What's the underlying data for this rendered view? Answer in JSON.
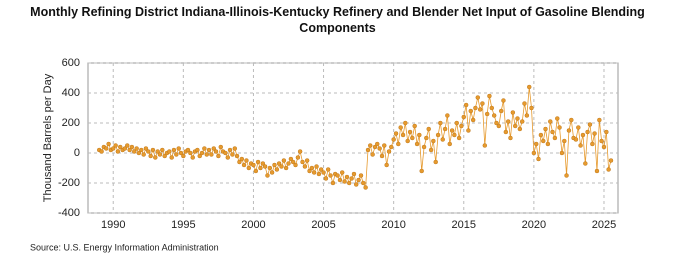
{
  "chart_data": {
    "type": "line",
    "title": "Monthly Refining District Indiana-Illinois-Kentucky Refinery and Blender Net Input of Gasoline Blending Components",
    "y_label": "Thousand Barrels per Day",
    "source": "Source: U.S. Energy Information Administration",
    "xlim": [
      1988.2,
      2026
    ],
    "xticks": [
      1990,
      1995,
      2000,
      2005,
      2010,
      2015,
      2020,
      2025
    ],
    "ylim": [
      -400,
      600
    ],
    "yticks": [
      -400,
      -200,
      0,
      200,
      400,
      600
    ],
    "grid": true,
    "series": [
      {
        "color": "#e69a2e",
        "x": [
          1989,
          1989.17,
          1989.33,
          1989.5,
          1989.67,
          1989.83,
          1990,
          1990.17,
          1990.33,
          1990.5,
          1990.67,
          1990.83,
          1991,
          1991.17,
          1991.33,
          1991.5,
          1991.67,
          1991.83,
          1992,
          1992.17,
          1992.33,
          1992.5,
          1992.67,
          1992.83,
          1993,
          1993.17,
          1993.33,
          1993.5,
          1993.67,
          1993.83,
          1994,
          1994.17,
          1994.33,
          1994.5,
          1994.67,
          1994.83,
          1995,
          1995.17,
          1995.33,
          1995.5,
          1995.67,
          1995.83,
          1996,
          1996.17,
          1996.33,
          1996.5,
          1996.67,
          1996.83,
          1997,
          1997.17,
          1997.33,
          1997.5,
          1997.67,
          1997.83,
          1998,
          1998.17,
          1998.33,
          1998.5,
          1998.67,
          1998.83,
          1999,
          1999.17,
          1999.33,
          1999.5,
          1999.67,
          1999.83,
          2000,
          2000.17,
          2000.33,
          2000.5,
          2000.67,
          2000.83,
          2001,
          2001.17,
          2001.33,
          2001.5,
          2001.67,
          2001.83,
          2002,
          2002.17,
          2002.33,
          2002.5,
          2002.67,
          2002.83,
          2003,
          2003.17,
          2003.33,
          2003.5,
          2003.67,
          2003.83,
          2004,
          2004.17,
          2004.33,
          2004.5,
          2004.67,
          2004.83,
          2005,
          2005.17,
          2005.33,
          2005.5,
          2005.67,
          2005.83,
          2006,
          2006.17,
          2006.33,
          2006.5,
          2006.67,
          2006.83,
          2007,
          2007.17,
          2007.33,
          2007.5,
          2007.67,
          2007.83,
          2008,
          2008.17,
          2008.33,
          2008.5,
          2008.67,
          2008.83,
          2009,
          2009.17,
          2009.33,
          2009.5,
          2009.67,
          2009.83,
          2010,
          2010.17,
          2010.33,
          2010.5,
          2010.67,
          2010.83,
          2011,
          2011.17,
          2011.33,
          2011.5,
          2011.67,
          2011.83,
          2012,
          2012.17,
          2012.33,
          2012.5,
          2012.67,
          2012.83,
          2013,
          2013.17,
          2013.33,
          2013.5,
          2013.67,
          2013.83,
          2014,
          2014.17,
          2014.33,
          2014.5,
          2014.67,
          2014.83,
          2015,
          2015.17,
          2015.33,
          2015.5,
          2015.67,
          2015.83,
          2016,
          2016.17,
          2016.33,
          2016.5,
          2016.67,
          2016.83,
          2017,
          2017.17,
          2017.33,
          2017.5,
          2017.67,
          2017.83,
          2018,
          2018.17,
          2018.33,
          2018.5,
          2018.67,
          2018.83,
          2019,
          2019.17,
          2019.33,
          2019.5,
          2019.67,
          2019.83,
          2020,
          2020.17,
          2020.33,
          2020.5,
          2020.67,
          2020.83,
          2021,
          2021.17,
          2021.33,
          2021.5,
          2021.67,
          2021.83,
          2022,
          2022.17,
          2022.33,
          2022.5,
          2022.67,
          2022.83,
          2023,
          2023.17,
          2023.33,
          2023.5,
          2023.67,
          2023.83,
          2024,
          2024.17,
          2024.33,
          2024.5,
          2024.67,
          2024.83,
          2025,
          2025.17,
          2025.33,
          2025.5
        ],
        "values": [
          20,
          10,
          40,
          30,
          60,
          20,
          30,
          50,
          10,
          40,
          20,
          30,
          50,
          20,
          40,
          10,
          30,
          0,
          20,
          -10,
          30,
          10,
          -20,
          20,
          -30,
          10,
          -10,
          20,
          -20,
          0,
          10,
          -30,
          20,
          -10,
          30,
          0,
          -20,
          10,
          20,
          0,
          -30,
          10,
          20,
          -20,
          0,
          30,
          -10,
          20,
          -10,
          30,
          10,
          -20,
          40,
          10,
          0,
          -30,
          20,
          -10,
          30,
          -20,
          -60,
          -40,
          -80,
          -50,
          -100,
          -70,
          -80,
          -120,
          -60,
          -100,
          -70,
          -90,
          -150,
          -100,
          -130,
          -80,
          -110,
          -70,
          -90,
          -50,
          -100,
          -70,
          -40,
          -60,
          -80,
          -30,
          10,
          -60,
          -90,
          -50,
          -120,
          -100,
          -130,
          -90,
          -140,
          -110,
          -130,
          -170,
          -110,
          -150,
          -200,
          -140,
          -150,
          -180,
          -130,
          -190,
          -160,
          -200,
          -170,
          -140,
          -210,
          -180,
          -150,
          -200,
          -230,
          20,
          50,
          -10,
          40,
          60,
          30,
          -20,
          50,
          -80,
          10,
          40,
          90,
          130,
          60,
          170,
          120,
          200,
          80,
          140,
          100,
          180,
          60,
          120,
          -120,
          40,
          100,
          160,
          20,
          80,
          -60,
          120,
          200,
          90,
          160,
          250,
          60,
          150,
          120,
          200,
          100,
          180,
          240,
          320,
          150,
          280,
          220,
          300,
          370,
          290,
          330,
          50,
          260,
          380,
          300,
          250,
          200,
          180,
          280,
          350,
          140,
          210,
          100,
          270,
          180,
          230,
          160,
          210,
          330,
          250,
          440,
          300,
          0,
          60,
          -40,
          120,
          80,
          160,
          60,
          210,
          140,
          100,
          230,
          170,
          0,
          80,
          -150,
          150,
          220,
          100,
          90,
          170,
          50,
          120,
          -70,
          140,
          190,
          60,
          130,
          -120,
          220,
          80,
          40,
          140,
          -110,
          -50
        ]
      }
    ]
  }
}
